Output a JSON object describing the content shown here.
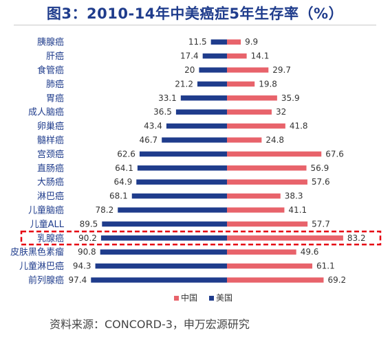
{
  "title": "图3：2010-14年中美癌症5年生存率（%）",
  "source": "资料来源：CONCORD-3，申万宏源研究",
  "colors": {
    "china": "#e8636b",
    "usa": "#1f3c8c",
    "highlight": "#e60012",
    "title": "#1f3c8c"
  },
  "chart_data": {
    "type": "bar",
    "orientation": "horizontal-diverging",
    "title": "图3：2010-14年中美癌症5年生存率（%）",
    "categories": [
      "胰腺癌",
      "肝癌",
      "食管癌",
      "肺癌",
      "胃癌",
      "成人脑癌",
      "卵巢癌",
      "髓样癌",
      "宫颈癌",
      "直肠癌",
      "大肠癌",
      "淋巴癌",
      "儿童脑癌",
      "儿童ALL",
      "乳腺癌",
      "皮肤黑色素瘤",
      "儿童淋巴癌",
      "前列腺癌"
    ],
    "series": [
      {
        "name": "中国",
        "color": "#e8636b",
        "values": [
          9.9,
          14.1,
          29.7,
          19.8,
          35.9,
          32,
          41.8,
          24.8,
          67.6,
          56.9,
          57.6,
          38.3,
          41.1,
          57.7,
          83.2,
          49.6,
          61.1,
          69.2
        ]
      },
      {
        "name": "美国",
        "color": "#1f3c8c",
        "values": [
          11.5,
          17.4,
          20,
          21.2,
          33.1,
          36.5,
          43.4,
          46.7,
          62.6,
          64.1,
          64.9,
          68.1,
          78.2,
          89.5,
          90.2,
          90.8,
          94.3,
          97.4
        ]
      }
    ],
    "highlight_category": "乳腺癌",
    "legend_position": "bottom",
    "grid": false,
    "xlim": [
      0,
      100
    ]
  }
}
